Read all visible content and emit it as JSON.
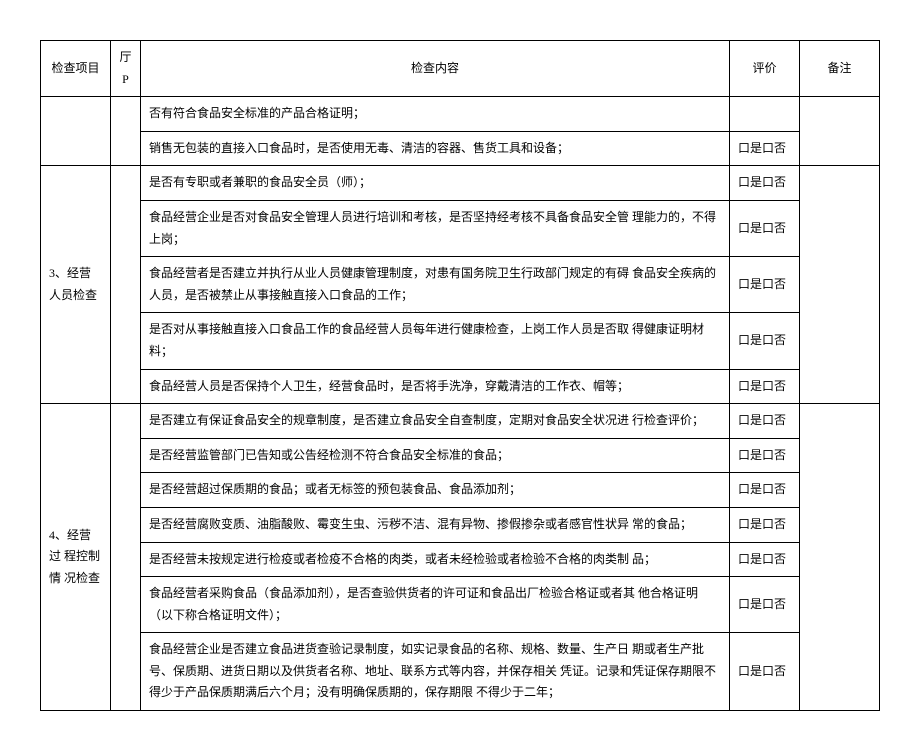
{
  "headers": {
    "item": "检查项目",
    "p": "厅P",
    "content": "检查内容",
    "eval": "评价",
    "note": "备注"
  },
  "eval_text": "口是口否",
  "section3": {
    "title": "3、经营人员检查",
    "rows": [
      "否有符合食品安全标准的产品合格证明；",
      "销售无包装的直接入口食品时，是否使用无毒、清洁的容器、售货工具和设备；",
      "是否有专职或者兼职的食品安全员（师）；",
      "食品经营企业是否对食品安全管理人员进行培训和考核，是否坚持经考核不具备食品安全管 理能力的，不得上岗；",
      "食品经营者是否建立并执行从业人员健康管理制度，对患有国务院卫生行政部门规定的有碍 食品安全疾病的人员，是否被禁止从事接触直接入口食品的工作；",
      "是否对从事接触直接入口食品工作的食品经营人员每年进行健康检查，上岗工作人员是否取 得健康证明材料；",
      "食品经营人员是否保持个人卫生，经营食品时，是否将手洗净，穿戴清洁的工作衣、帽等；"
    ]
  },
  "section4": {
    "title": "4、经营过 程控制情 况检查",
    "rows": [
      "是否建立有保证食品安全的规章制度，是否建立食品安全自查制度，定期对食品安全状况进 行检查评价；",
      "是否经营监管部门已告知或公告经检测不符合食品安全标准的食品；",
      "是否经营超过保质期的食品；或者无标签的预包装食品、食品添加剂；",
      "是否经营腐败变质、油脂酸败、霉变生虫、污秽不洁、混有异物、掺假掺杂或者感官性状异 常的食品；",
      "是否经营未按规定进行检疫或者检疫不合格的肉类，或者未经检验或者检验不合格的肉类制 品；",
      "食品经营者采购食品（食品添加剂），是否查验供货者的许可证和食品出厂检验合格证或者其 他合格证明（以下称合格证明文件）；",
      "食品经营企业是否建立食品进货查验记录制度，如实记录食品的名称、规格、数量、生产日 期或者生产批号、保质期、进货日期以及供货者名称、地址、联系方式等内容，并保存相关 凭证。记录和凭证保存期限不得少于产品保质期满后六个月；没有明确保质期的，保存期限 不得少于二年；"
    ]
  }
}
